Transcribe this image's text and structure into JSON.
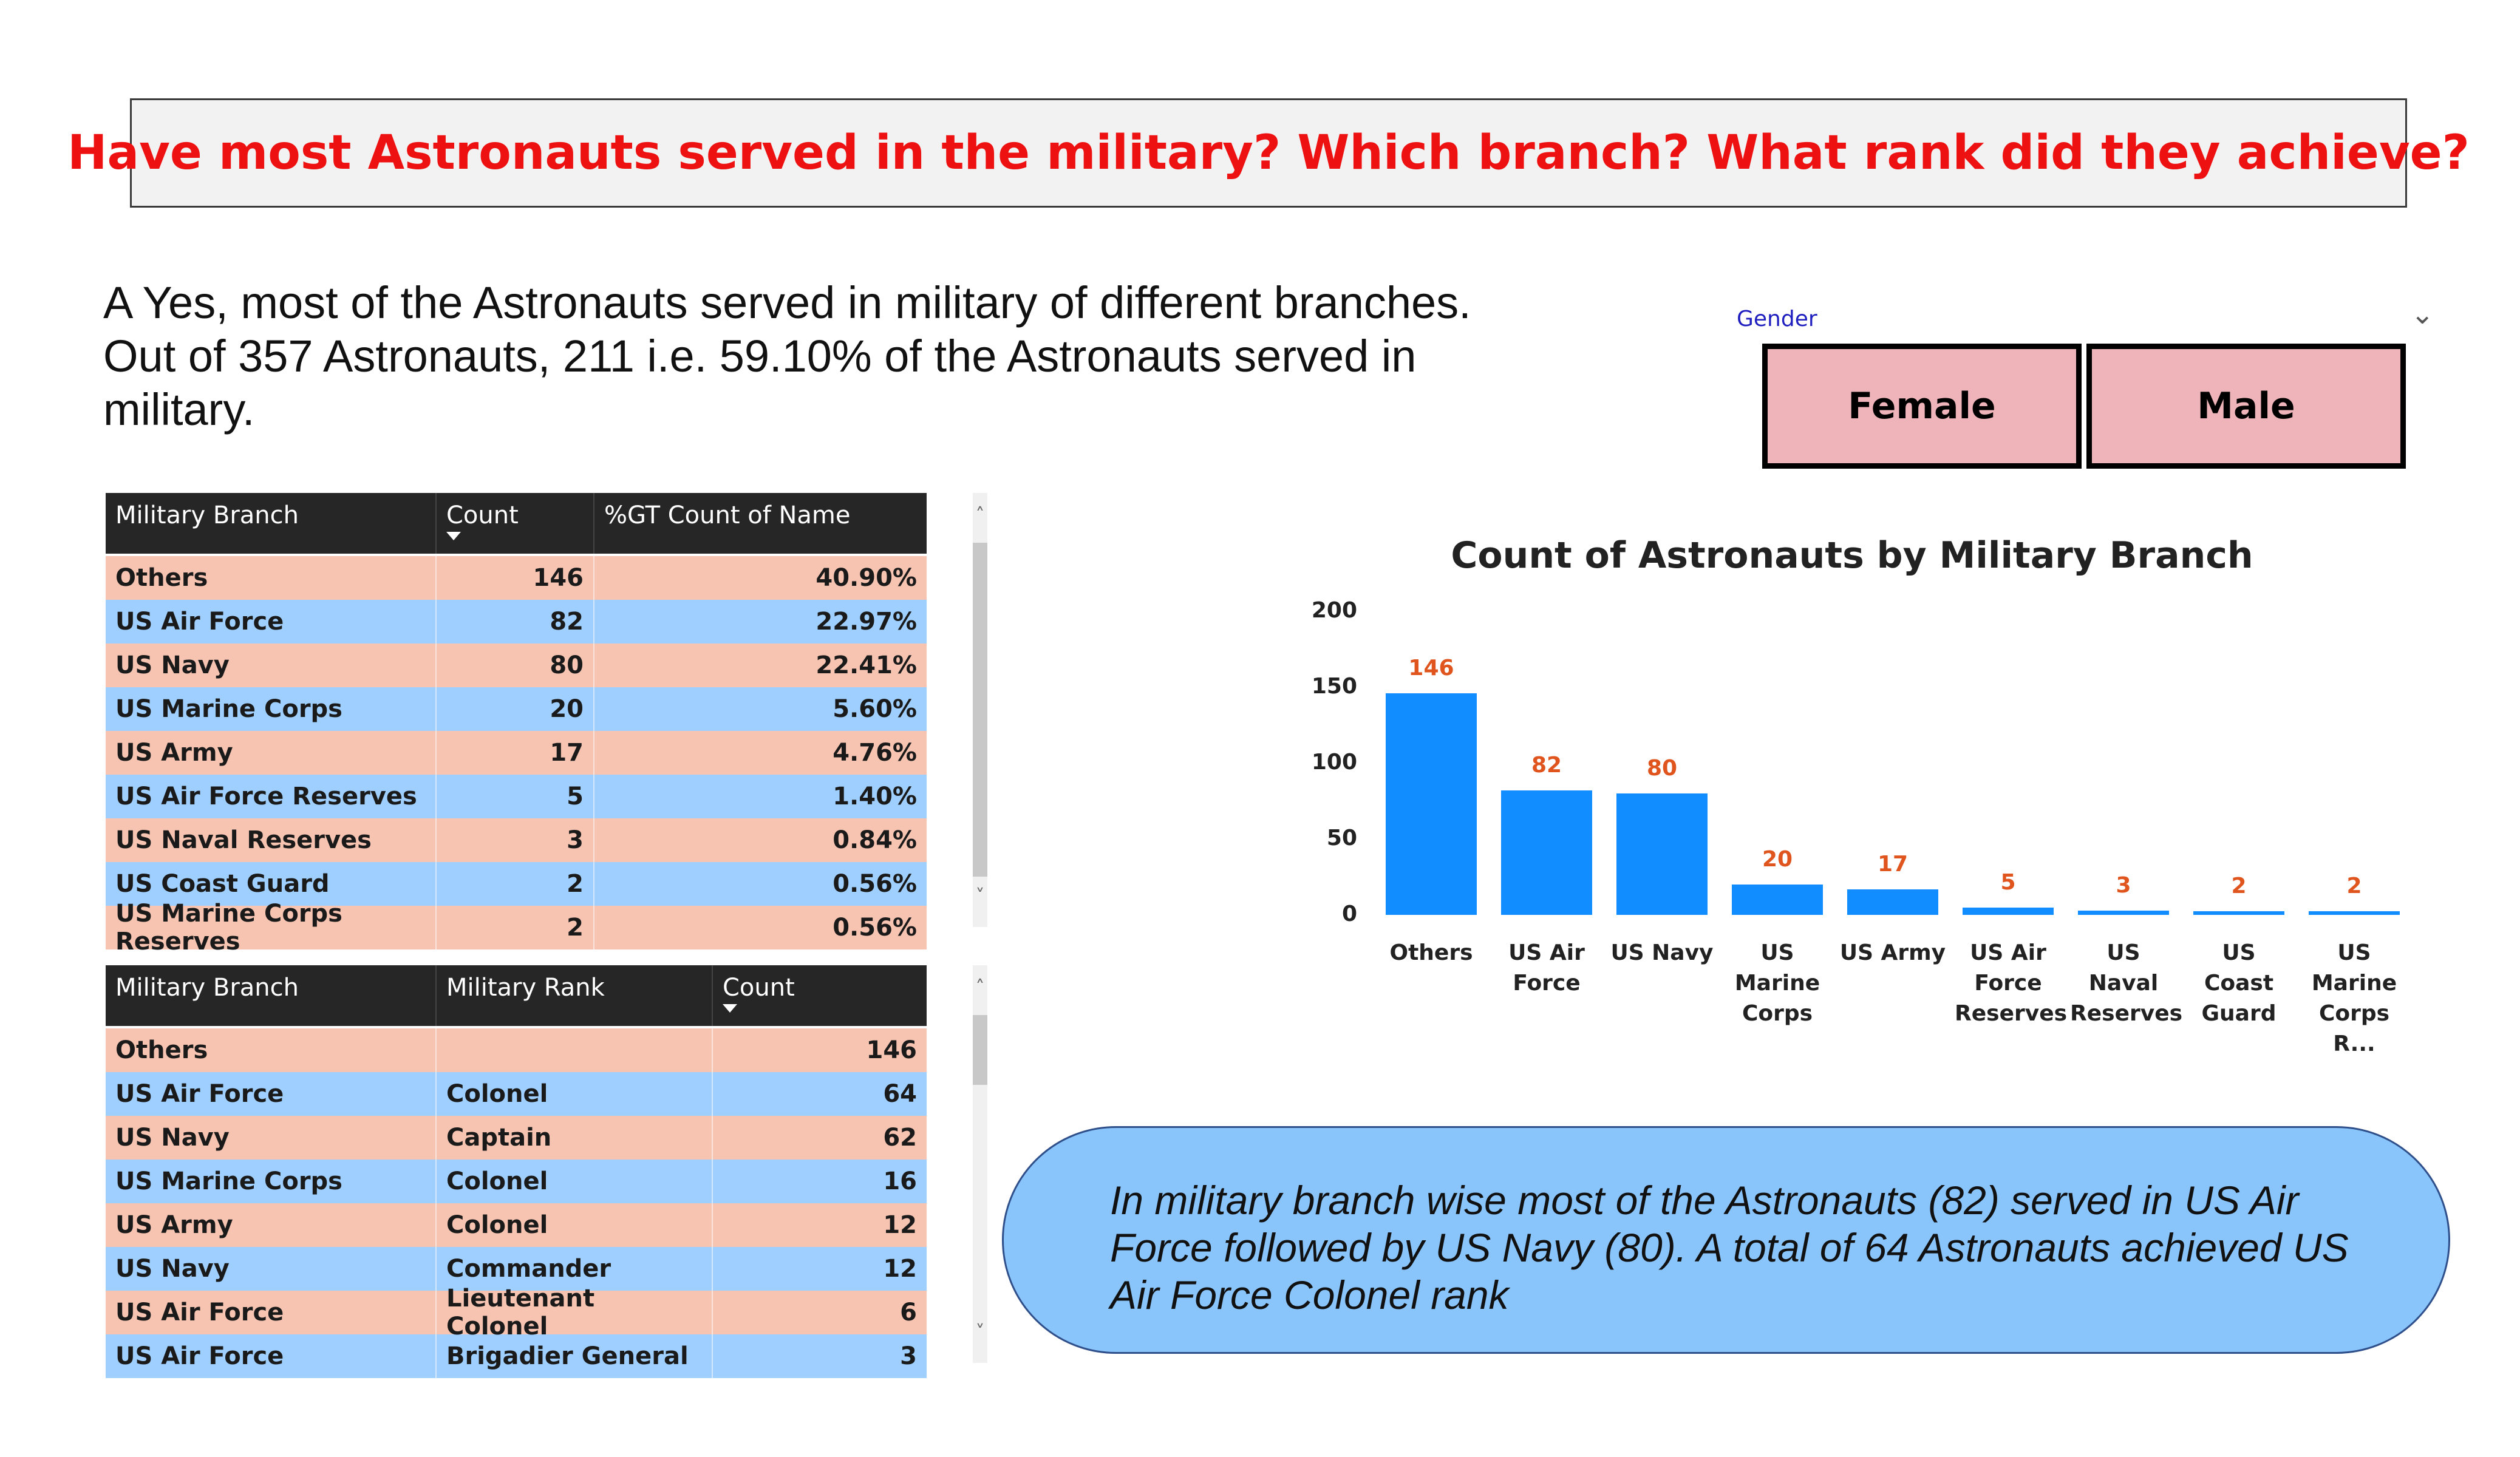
{
  "title": "Have most Astronauts served in the military? Which branch? What rank did they achieve?",
  "intro": {
    "line1": "A Yes, most of the Astronauts served in military of  different branches.",
    "line2": "Out of  357  Astronauts, 211 i.e.  59.10% of the Astronauts served in",
    "line3": "military."
  },
  "slicer": {
    "label": "Gender",
    "options": [
      "Female",
      "Male"
    ]
  },
  "table1": {
    "headers": [
      "Military Branch",
      "Count",
      "%GT Count of Name"
    ],
    "rows": [
      [
        "Others",
        "146",
        "40.90%"
      ],
      [
        "US Air Force",
        "82",
        "22.97%"
      ],
      [
        "US Navy",
        "80",
        "22.41%"
      ],
      [
        "US Marine Corps",
        "20",
        "5.60%"
      ],
      [
        "US Army",
        "17",
        "4.76%"
      ],
      [
        "US Air Force Reserves",
        "5",
        "1.40%"
      ],
      [
        "US Naval Reserves",
        "3",
        "0.84%"
      ],
      [
        "US Coast Guard",
        "2",
        "0.56%"
      ],
      [
        "US Marine Corps Reserves",
        "2",
        "0.56%"
      ]
    ]
  },
  "table2": {
    "headers": [
      "Military Branch",
      "Military Rank",
      "Count"
    ],
    "rows": [
      [
        "Others",
        "",
        "146"
      ],
      [
        "US Air Force",
        "Colonel",
        "64"
      ],
      [
        "US Navy",
        "Captain",
        "62"
      ],
      [
        "US Marine Corps",
        "Colonel",
        "16"
      ],
      [
        "US Army",
        "Colonel",
        "12"
      ],
      [
        "US Navy",
        "Commander",
        "12"
      ],
      [
        "US Air Force",
        "Lieutenant Colonel",
        "6"
      ],
      [
        "US Air Force",
        "Brigadier General",
        "3"
      ]
    ]
  },
  "chart_data": {
    "type": "bar",
    "title": "Count of Astronauts by Military Branch",
    "xlabel": "",
    "ylabel": "",
    "categories": [
      "Others",
      "US Air Force",
      "US Navy",
      "US Marine Corps",
      "US Army",
      "US Air Force Reserves",
      "US Naval Reserves",
      "US Coast Guard",
      "US Marine Corps R..."
    ],
    "category_lines": [
      [
        "Others"
      ],
      [
        "US Air",
        "Force"
      ],
      [
        "US Navy"
      ],
      [
        "US",
        "Marine",
        "Corps"
      ],
      [
        "US Army"
      ],
      [
        "US Air",
        "Force",
        "Reserves"
      ],
      [
        "US Naval",
        "Reserves"
      ],
      [
        "US Coast",
        "Guard"
      ],
      [
        "US",
        "Marine",
        "Corps R..."
      ]
    ],
    "values": [
      146,
      82,
      80,
      20,
      17,
      5,
      3,
      2,
      2
    ],
    "ylim": [
      0,
      200
    ],
    "yticks": [
      "0",
      "50",
      "100",
      "150",
      "200"
    ],
    "grid": false,
    "colors": {
      "bar": "#118dff",
      "data_label": "#e0541e"
    }
  },
  "callout": {
    "text": "In military branch wise most of the Astronauts (82) served in US Air Force  followed by US Navy (80). A total of 64 Astronauts achieved US Air Force Colonel rank"
  }
}
